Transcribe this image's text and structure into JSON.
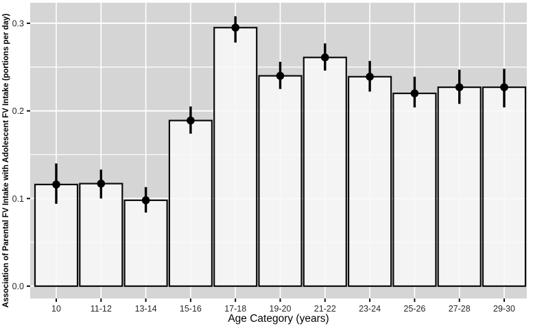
{
  "figure": {
    "background": "#ffffff",
    "panel_bg": "#d5d5d5",
    "grid_color": "#ffffff",
    "bar_fill_rgba": "rgba(248,248,248,0.88)",
    "bar_stroke": "#0b0b0b",
    "point_color": "#000000",
    "tick_color": "#111111",
    "tick_label_color": "#262626"
  },
  "chart_data": {
    "type": "bar",
    "title": "",
    "xlabel": "Age Category (years)",
    "ylabel": "Association of Parental FV Intake with Adolescent FV Intake (portions per day)",
    "categories": [
      "10",
      "11-12",
      "13-14",
      "15-16",
      "17-18",
      "19-20",
      "21-22",
      "23-24",
      "25-26",
      "27-28",
      "29-30"
    ],
    "values": [
      0.116,
      0.117,
      0.098,
      0.189,
      0.295,
      0.24,
      0.261,
      0.239,
      0.22,
      0.227,
      0.227
    ],
    "error_low": [
      0.094,
      0.1,
      0.084,
      0.174,
      0.278,
      0.225,
      0.246,
      0.222,
      0.204,
      0.208,
      0.204
    ],
    "error_high": [
      0.14,
      0.133,
      0.113,
      0.205,
      0.308,
      0.256,
      0.277,
      0.257,
      0.239,
      0.247,
      0.248
    ],
    "ylim": [
      0.0,
      0.323
    ],
    "y_ticks": [
      {
        "label": "0.0",
        "value": 0.0
      },
      {
        "label": "0.1",
        "value": 0.1
      },
      {
        "label": "0.2",
        "value": 0.2
      },
      {
        "label": "0.3",
        "value": 0.3
      }
    ],
    "y_minor_gridlines": [
      0.05,
      0.15,
      0.25
    ],
    "grid": true,
    "legend_position": "none",
    "style_note": "ggplot2 gray panel, white gridlines, light bars with black outline, pointrange error bars"
  }
}
